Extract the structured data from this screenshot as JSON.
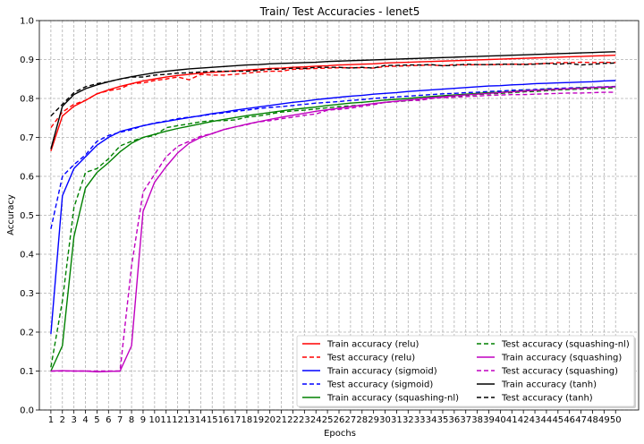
{
  "chart_data": {
    "type": "line",
    "title": "Train/ Test Accuracies - lenet5",
    "xlabel": "Epochs",
    "ylabel": "Accuracy",
    "xlim": [
      0,
      52
    ],
    "ylim": [
      0.0,
      1.0
    ],
    "x_ticks": [
      1,
      2,
      3,
      4,
      5,
      6,
      7,
      8,
      9,
      10,
      11,
      12,
      13,
      14,
      15,
      16,
      17,
      18,
      19,
      20,
      21,
      22,
      23,
      24,
      25,
      26,
      27,
      28,
      29,
      30,
      31,
      32,
      33,
      34,
      35,
      36,
      37,
      38,
      39,
      40,
      41,
      42,
      43,
      44,
      45,
      46,
      47,
      48,
      49,
      50
    ],
    "y_ticks": [
      0.0,
      0.1,
      0.2,
      0.3,
      0.4,
      0.5,
      0.6,
      0.7,
      0.8,
      0.9,
      1.0
    ],
    "grid": true,
    "legend_position": "bottom-right",
    "legend_columns": 2,
    "x": [
      1,
      2,
      3,
      4,
      5,
      6,
      7,
      8,
      9,
      10,
      11,
      12,
      13,
      14,
      15,
      16,
      17,
      18,
      19,
      20,
      21,
      22,
      23,
      24,
      25,
      26,
      27,
      28,
      29,
      30,
      31,
      32,
      33,
      34,
      35,
      36,
      37,
      38,
      39,
      40,
      41,
      42,
      43,
      44,
      45,
      46,
      47,
      48,
      49,
      50
    ],
    "series": [
      {
        "name": "Train accuracy (relu)",
        "color": "#ff0000",
        "dash": "solid",
        "values": [
          0.665,
          0.755,
          0.78,
          0.795,
          0.812,
          0.822,
          0.831,
          0.838,
          0.845,
          0.85,
          0.855,
          0.859,
          0.862,
          0.865,
          0.867,
          0.869,
          0.871,
          0.873,
          0.875,
          0.877,
          0.878,
          0.88,
          0.881,
          0.883,
          0.884,
          0.886,
          0.887,
          0.888,
          0.889,
          0.891,
          0.892,
          0.893,
          0.894,
          0.895,
          0.896,
          0.897,
          0.898,
          0.899,
          0.9,
          0.901,
          0.902,
          0.903,
          0.904,
          0.905,
          0.906,
          0.907,
          0.908,
          0.909,
          0.91,
          0.911
        ]
      },
      {
        "name": "Test accuracy (relu)",
        "color": "#ff0000",
        "dash": "dashed",
        "values": [
          0.725,
          0.765,
          0.785,
          0.795,
          0.812,
          0.82,
          0.825,
          0.838,
          0.84,
          0.846,
          0.85,
          0.855,
          0.848,
          0.862,
          0.86,
          0.86,
          0.862,
          0.865,
          0.868,
          0.87,
          0.87,
          0.875,
          0.876,
          0.877,
          0.878,
          0.879,
          0.879,
          0.879,
          0.878,
          0.882,
          0.883,
          0.884,
          0.885,
          0.886,
          0.884,
          0.887,
          0.886,
          0.887,
          0.887,
          0.887,
          0.888,
          0.888,
          0.889,
          0.89,
          0.892,
          0.892,
          0.893,
          0.892,
          0.893,
          0.892
        ]
      },
      {
        "name": "Train accuracy (sigmoid)",
        "color": "#0000ff",
        "dash": "solid",
        "values": [
          0.195,
          0.55,
          0.62,
          0.65,
          0.68,
          0.7,
          0.715,
          0.723,
          0.73,
          0.736,
          0.741,
          0.746,
          0.751,
          0.756,
          0.761,
          0.765,
          0.77,
          0.774,
          0.778,
          0.782,
          0.786,
          0.79,
          0.793,
          0.797,
          0.8,
          0.803,
          0.806,
          0.808,
          0.811,
          0.813,
          0.815,
          0.818,
          0.82,
          0.822,
          0.824,
          0.826,
          0.828,
          0.83,
          0.832,
          0.833,
          0.835,
          0.836,
          0.838,
          0.839,
          0.84,
          0.841,
          0.842,
          0.843,
          0.845,
          0.846
        ]
      },
      {
        "name": "Test accuracy (sigmoid)",
        "color": "#0000ff",
        "dash": "dashed",
        "values": [
          0.465,
          0.6,
          0.63,
          0.655,
          0.69,
          0.705,
          0.713,
          0.72,
          0.73,
          0.737,
          0.742,
          0.748,
          0.752,
          0.755,
          0.76,
          0.763,
          0.767,
          0.77,
          0.774,
          0.777,
          0.779,
          0.782,
          0.785,
          0.788,
          0.79,
          0.792,
          0.795,
          0.797,
          0.8,
          0.802,
          0.804,
          0.806,
          0.808,
          0.81,
          0.812,
          0.813,
          0.815,
          0.816,
          0.818,
          0.819,
          0.821,
          0.822,
          0.823,
          0.825,
          0.826,
          0.827,
          0.828,
          0.829,
          0.83,
          0.831
        ]
      },
      {
        "name": "Train accuracy (squashing-nl)",
        "color": "#008000",
        "dash": "solid",
        "values": [
          0.1,
          0.165,
          0.445,
          0.57,
          0.61,
          0.635,
          0.663,
          0.685,
          0.7,
          0.708,
          0.716,
          0.723,
          0.729,
          0.735,
          0.741,
          0.746,
          0.751,
          0.756,
          0.76,
          0.764,
          0.768,
          0.772,
          0.775,
          0.778,
          0.782,
          0.785,
          0.788,
          0.79,
          0.793,
          0.796,
          0.798,
          0.8,
          0.803,
          0.805,
          0.807,
          0.809,
          0.811,
          0.813,
          0.815,
          0.816,
          0.818,
          0.82,
          0.821,
          0.823,
          0.824,
          0.825,
          0.827,
          0.828,
          0.829,
          0.83
        ]
      },
      {
        "name": "Test accuracy (squashing-nl)",
        "color": "#008000",
        "dash": "dashed",
        "values": [
          0.11,
          0.28,
          0.52,
          0.61,
          0.62,
          0.645,
          0.678,
          0.69,
          0.7,
          0.705,
          0.725,
          0.73,
          0.735,
          0.74,
          0.743,
          0.743,
          0.745,
          0.752,
          0.755,
          0.76,
          0.765,
          0.768,
          0.77,
          0.773,
          0.776,
          0.779,
          0.781,
          0.783,
          0.786,
          0.79,
          0.792,
          0.794,
          0.797,
          0.8,
          0.803,
          0.806,
          0.808,
          0.81,
          0.812,
          0.813,
          0.815,
          0.817,
          0.818,
          0.82,
          0.822,
          0.823,
          0.824,
          0.825,
          0.826,
          0.827
        ]
      },
      {
        "name": "Train accuracy (squashing)",
        "color": "#c000c0",
        "dash": "solid",
        "values": [
          0.1,
          0.101,
          0.1,
          0.1,
          0.098,
          0.099,
          0.1,
          0.165,
          0.51,
          0.585,
          0.625,
          0.66,
          0.685,
          0.7,
          0.71,
          0.72,
          0.727,
          0.734,
          0.74,
          0.746,
          0.752,
          0.757,
          0.762,
          0.767,
          0.771,
          0.775,
          0.779,
          0.783,
          0.787,
          0.79,
          0.793,
          0.796,
          0.799,
          0.802,
          0.804,
          0.807,
          0.809,
          0.811,
          0.813,
          0.815,
          0.817,
          0.819,
          0.821,
          0.822,
          0.824,
          0.825,
          0.826,
          0.828,
          0.829,
          0.83
        ]
      },
      {
        "name": "Test accuracy (squashing)",
        "color": "#c000c0",
        "dash": "dashed",
        "values": [
          0.1,
          0.1,
          0.1,
          0.1,
          0.1,
          0.1,
          0.1,
          0.37,
          0.56,
          0.605,
          0.65,
          0.677,
          0.69,
          0.703,
          0.71,
          0.72,
          0.727,
          0.733,
          0.74,
          0.743,
          0.748,
          0.752,
          0.757,
          0.76,
          0.77,
          0.772,
          0.775,
          0.78,
          0.784,
          0.79,
          0.792,
          0.795,
          0.795,
          0.8,
          0.802,
          0.803,
          0.805,
          0.806,
          0.808,
          0.809,
          0.81,
          0.81,
          0.811,
          0.812,
          0.813,
          0.814,
          0.814,
          0.815,
          0.816,
          0.816
        ]
      },
      {
        "name": "Train accuracy (tanh)",
        "color": "#000000",
        "dash": "solid",
        "values": [
          0.67,
          0.78,
          0.81,
          0.825,
          0.835,
          0.843,
          0.85,
          0.856,
          0.861,
          0.866,
          0.87,
          0.873,
          0.876,
          0.878,
          0.88,
          0.882,
          0.884,
          0.886,
          0.887,
          0.889,
          0.89,
          0.891,
          0.892,
          0.893,
          0.895,
          0.896,
          0.897,
          0.898,
          0.899,
          0.9,
          0.901,
          0.902,
          0.903,
          0.904,
          0.905,
          0.906,
          0.907,
          0.908,
          0.909,
          0.91,
          0.911,
          0.912,
          0.913,
          0.914,
          0.915,
          0.916,
          0.917,
          0.918,
          0.919,
          0.92
        ]
      },
      {
        "name": "Test accuracy (tanh)",
        "color": "#000000",
        "dash": "dashed",
        "values": [
          0.755,
          0.785,
          0.815,
          0.83,
          0.838,
          0.843,
          0.85,
          0.855,
          0.855,
          0.86,
          0.862,
          0.865,
          0.866,
          0.868,
          0.87,
          0.87,
          0.87,
          0.87,
          0.872,
          0.875,
          0.875,
          0.878,
          0.877,
          0.88,
          0.88,
          0.88,
          0.878,
          0.88,
          0.878,
          0.885,
          0.885,
          0.886,
          0.886,
          0.887,
          0.884,
          0.885,
          0.888,
          0.887,
          0.887,
          0.888,
          0.888,
          0.887,
          0.888,
          0.89,
          0.888,
          0.89,
          0.886,
          0.888,
          0.89,
          0.891
        ]
      }
    ]
  }
}
